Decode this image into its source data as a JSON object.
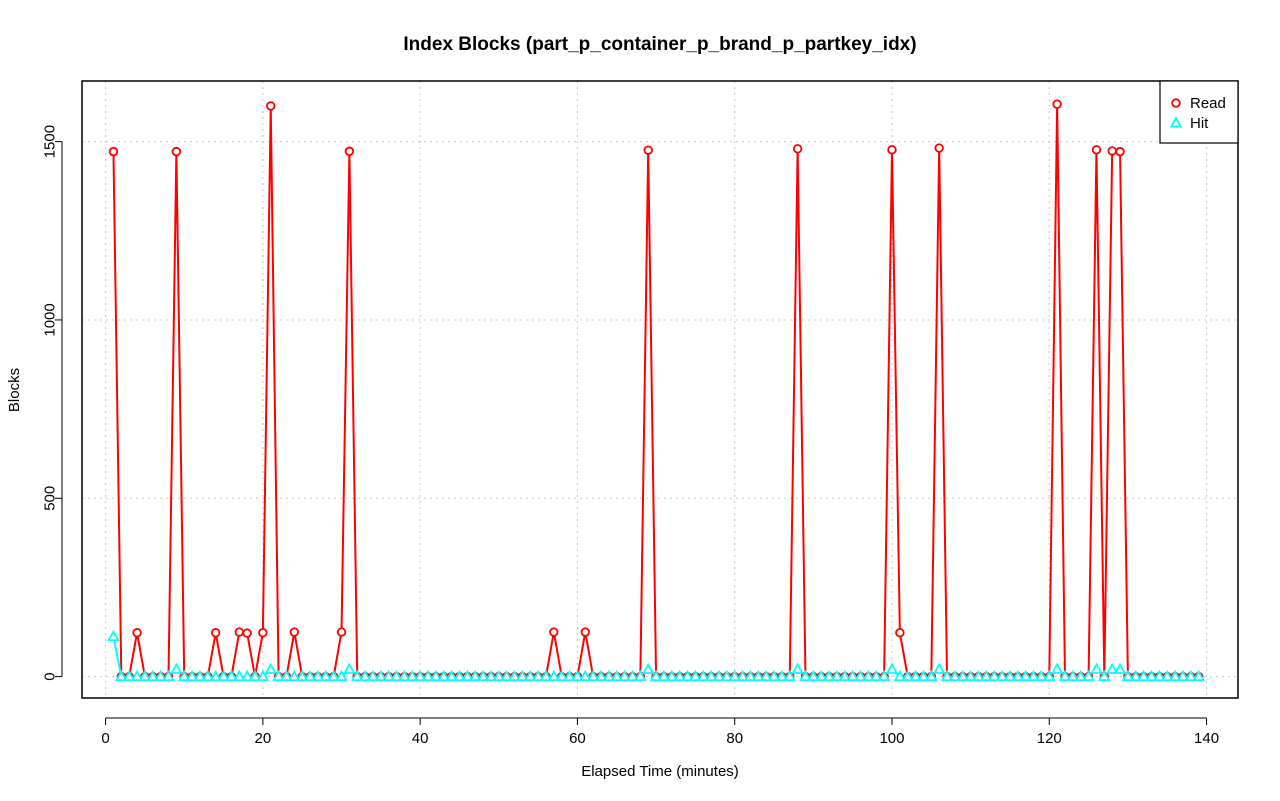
{
  "chart_data": {
    "type": "line",
    "title": "Index Blocks (part_p_container_p_brand_p_partkey_idx)",
    "xlabel": "Elapsed Time (minutes)",
    "ylabel": "Blocks",
    "xlim": [
      -3,
      144
    ],
    "ylim": [
      -60,
      1670
    ],
    "xticks": [
      0,
      20,
      40,
      60,
      80,
      100,
      120,
      140
    ],
    "yticks": [
      0,
      500,
      1000,
      1500
    ],
    "grid": true,
    "legend_position": "top-right",
    "x": [
      1,
      2,
      3,
      4,
      5,
      6,
      7,
      8,
      9,
      10,
      11,
      12,
      13,
      14,
      15,
      16,
      17,
      18,
      19,
      20,
      21,
      22,
      23,
      24,
      25,
      26,
      27,
      28,
      29,
      30,
      31,
      32,
      33,
      34,
      35,
      36,
      37,
      38,
      39,
      40,
      41,
      42,
      43,
      44,
      45,
      46,
      47,
      48,
      49,
      50,
      51,
      52,
      53,
      54,
      55,
      56,
      57,
      58,
      59,
      60,
      61,
      62,
      63,
      64,
      65,
      66,
      67,
      68,
      69,
      70,
      71,
      72,
      73,
      74,
      75,
      76,
      77,
      78,
      79,
      80,
      81,
      82,
      83,
      84,
      85,
      86,
      87,
      88,
      89,
      90,
      91,
      92,
      93,
      94,
      95,
      96,
      97,
      98,
      99,
      100,
      101,
      102,
      103,
      104,
      105,
      106,
      107,
      108,
      109,
      110,
      111,
      112,
      113,
      114,
      115,
      116,
      117,
      118,
      119,
      120,
      121,
      122,
      123,
      124,
      125,
      126,
      127,
      128,
      129,
      130,
      131,
      132,
      133,
      134,
      135,
      136,
      137,
      138,
      139
    ],
    "series": [
      {
        "name": "Read",
        "color": "#ff0000",
        "marker": "circle",
        "values": [
          1472,
          0,
          0,
          123,
          0,
          0,
          0,
          0,
          1472,
          0,
          0,
          0,
          0,
          123,
          0,
          0,
          125,
          122,
          0,
          123,
          1600,
          0,
          0,
          125,
          0,
          0,
          0,
          0,
          0,
          125,
          1473,
          0,
          0,
          0,
          0,
          0,
          0,
          0,
          0,
          0,
          0,
          0,
          0,
          0,
          0,
          0,
          0,
          0,
          0,
          0,
          0,
          0,
          0,
          0,
          0,
          0,
          125,
          0,
          0,
          0,
          125,
          0,
          0,
          0,
          0,
          0,
          0,
          0,
          1476,
          0,
          0,
          0,
          0,
          0,
          0,
          0,
          0,
          0,
          0,
          0,
          0,
          0,
          0,
          0,
          0,
          0,
          0,
          1480,
          0,
          0,
          0,
          0,
          0,
          0,
          0,
          0,
          0,
          0,
          0,
          1477,
          123,
          0,
          0,
          0,
          0,
          1482,
          0,
          0,
          0,
          0,
          0,
          0,
          0,
          0,
          0,
          0,
          0,
          0,
          0,
          0,
          1605,
          0,
          0,
          0,
          0,
          1477,
          0,
          1474,
          1472,
          0,
          0,
          0,
          0,
          0,
          0,
          0,
          0,
          0,
          0
        ]
      },
      {
        "name": "Hit",
        "color": "#00ffff",
        "marker": "triangle",
        "values": [
          112,
          0,
          0,
          0,
          0,
          0,
          0,
          0,
          20,
          0,
          0,
          0,
          0,
          0,
          0,
          0,
          0,
          0,
          0,
          0,
          20,
          0,
          0,
          0,
          0,
          0,
          0,
          0,
          0,
          0,
          20,
          0,
          0,
          0,
          0,
          0,
          0,
          0,
          0,
          0,
          0,
          0,
          0,
          0,
          0,
          0,
          0,
          0,
          0,
          0,
          0,
          0,
          0,
          0,
          0,
          0,
          0,
          0,
          0,
          0,
          0,
          0,
          0,
          0,
          0,
          0,
          0,
          0,
          20,
          0,
          0,
          0,
          0,
          0,
          0,
          0,
          0,
          0,
          0,
          0,
          0,
          0,
          0,
          0,
          0,
          0,
          0,
          20,
          0,
          0,
          0,
          0,
          0,
          0,
          0,
          0,
          0,
          0,
          0,
          20,
          0,
          0,
          0,
          0,
          0,
          20,
          0,
          0,
          0,
          0,
          0,
          0,
          0,
          0,
          0,
          0,
          0,
          0,
          0,
          0,
          20,
          0,
          0,
          0,
          0,
          20,
          0,
          20,
          20,
          0,
          0,
          0,
          0,
          0,
          0,
          0,
          0,
          0,
          0
        ]
      }
    ]
  }
}
